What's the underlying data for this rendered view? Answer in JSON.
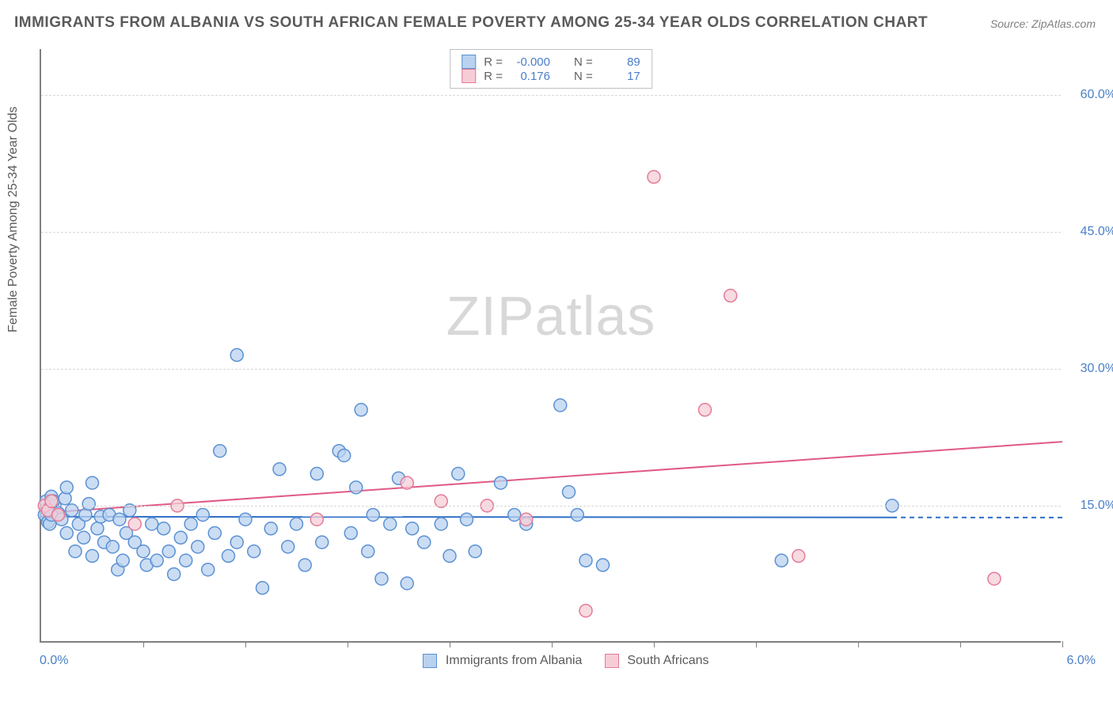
{
  "title": "IMMIGRANTS FROM ALBANIA VS SOUTH AFRICAN FEMALE POVERTY AMONG 25-34 YEAR OLDS CORRELATION CHART",
  "source": "Source: ZipAtlas.com",
  "watermark_a": "ZIP",
  "watermark_b": "atlas",
  "y_axis_label": "Female Poverty Among 25-34 Year Olds",
  "chart": {
    "type": "scatter-correlation",
    "background_color": "#ffffff",
    "grid_color": "#d8d8d8",
    "axis_color": "#808080",
    "x_range": [
      0.0,
      6.0
    ],
    "y_range": [
      0.0,
      65.0
    ],
    "x_origin_label": "0.0%",
    "x_max_label": "6.0%",
    "y_ticks": [
      {
        "value": 15.0,
        "label": "15.0%"
      },
      {
        "value": 30.0,
        "label": "30.0%"
      },
      {
        "value": 45.0,
        "label": "45.0%"
      },
      {
        "value": 60.0,
        "label": "60.0%"
      }
    ],
    "x_tick_positions": [
      0.6,
      1.2,
      1.8,
      2.4,
      3.0,
      3.6,
      4.2,
      4.8,
      5.4,
      6.0
    ],
    "series": [
      {
        "id": "albania",
        "label": "Immigrants from Albania",
        "marker_fill": "#b9d2ef",
        "marker_stroke": "#5b91d4",
        "marker_opacity": 0.75,
        "marker_radius": 8,
        "R": "-0.000",
        "N": "89",
        "trend": {
          "y_at_xmin": 13.8,
          "y_at_xmax": 13.7,
          "solid_until_x": 5.0,
          "color": "#2f6fc8",
          "width": 2
        },
        "points": [
          [
            0.02,
            14.0
          ],
          [
            0.03,
            15.5
          ],
          [
            0.04,
            13.2
          ],
          [
            0.05,
            14.8
          ],
          [
            0.06,
            16.0
          ],
          [
            0.05,
            13.0
          ],
          [
            0.08,
            15.0
          ],
          [
            0.1,
            14.2
          ],
          [
            0.07,
            15.5
          ],
          [
            0.06,
            14.0
          ],
          [
            0.12,
            13.5
          ],
          [
            0.15,
            12.0
          ],
          [
            0.14,
            15.8
          ],
          [
            0.18,
            14.5
          ],
          [
            0.2,
            10.0
          ],
          [
            0.22,
            13.0
          ],
          [
            0.25,
            11.5
          ],
          [
            0.26,
            14.0
          ],
          [
            0.28,
            15.2
          ],
          [
            0.3,
            9.5
          ],
          [
            0.33,
            12.5
          ],
          [
            0.35,
            13.8
          ],
          [
            0.37,
            11.0
          ],
          [
            0.4,
            14.0
          ],
          [
            0.42,
            10.5
          ],
          [
            0.45,
            8.0
          ],
          [
            0.46,
            13.5
          ],
          [
            0.48,
            9.0
          ],
          [
            0.5,
            12.0
          ],
          [
            0.52,
            14.5
          ],
          [
            0.55,
            11.0
          ],
          [
            0.6,
            10.0
          ],
          [
            0.62,
            8.5
          ],
          [
            0.65,
            13.0
          ],
          [
            0.68,
            9.0
          ],
          [
            0.72,
            12.5
          ],
          [
            0.75,
            10.0
          ],
          [
            0.78,
            7.5
          ],
          [
            0.82,
            11.5
          ],
          [
            0.85,
            9.0
          ],
          [
            0.88,
            13.0
          ],
          [
            0.92,
            10.5
          ],
          [
            0.95,
            14.0
          ],
          [
            0.98,
            8.0
          ],
          [
            1.02,
            12.0
          ],
          [
            1.05,
            21.0
          ],
          [
            1.1,
            9.5
          ],
          [
            1.15,
            11.0
          ],
          [
            1.2,
            13.5
          ],
          [
            1.25,
            10.0
          ],
          [
            1.3,
            6.0
          ],
          [
            1.35,
            12.5
          ],
          [
            1.4,
            19.0
          ],
          [
            1.45,
            10.5
          ],
          [
            1.5,
            13.0
          ],
          [
            1.55,
            8.5
          ],
          [
            1.62,
            18.5
          ],
          [
            1.65,
            11.0
          ],
          [
            1.75,
            21.0
          ],
          [
            1.78,
            20.5
          ],
          [
            1.82,
            12.0
          ],
          [
            1.85,
            17.0
          ],
          [
            1.88,
            25.5
          ],
          [
            1.92,
            10.0
          ],
          [
            1.95,
            14.0
          ],
          [
            2.0,
            7.0
          ],
          [
            2.05,
            13.0
          ],
          [
            2.1,
            18.0
          ],
          [
            2.15,
            6.5
          ],
          [
            2.18,
            12.5
          ],
          [
            2.25,
            11.0
          ],
          [
            2.35,
            13.0
          ],
          [
            2.4,
            9.5
          ],
          [
            2.45,
            18.5
          ],
          [
            2.5,
            13.5
          ],
          [
            2.55,
            10.0
          ],
          [
            2.7,
            17.5
          ],
          [
            2.78,
            14.0
          ],
          [
            2.85,
            13.0
          ],
          [
            3.05,
            26.0
          ],
          [
            3.1,
            16.5
          ],
          [
            3.15,
            14.0
          ],
          [
            3.2,
            9.0
          ],
          [
            3.3,
            8.5
          ],
          [
            1.15,
            31.5
          ],
          [
            0.3,
            17.5
          ],
          [
            4.35,
            9.0
          ],
          [
            5.0,
            15.0
          ],
          [
            0.15,
            17.0
          ]
        ]
      },
      {
        "id": "south_african",
        "label": "South Africans",
        "marker_fill": "#f6cdd7",
        "marker_stroke": "#e47a98",
        "marker_opacity": 0.75,
        "marker_radius": 8,
        "R": "0.176",
        "N": "17",
        "trend": {
          "y_at_xmin": 14.2,
          "y_at_xmax": 22.0,
          "solid_until_x": 6.0,
          "color": "#e05a84",
          "width": 2
        },
        "points": [
          [
            0.02,
            15.0
          ],
          [
            0.04,
            14.5
          ],
          [
            0.06,
            15.5
          ],
          [
            0.1,
            14.0
          ],
          [
            0.55,
            13.0
          ],
          [
            0.8,
            15.0
          ],
          [
            1.62,
            13.5
          ],
          [
            2.15,
            17.5
          ],
          [
            2.35,
            15.5
          ],
          [
            2.62,
            15.0
          ],
          [
            2.85,
            13.5
          ],
          [
            3.2,
            3.5
          ],
          [
            3.6,
            51.0
          ],
          [
            3.9,
            25.5
          ],
          [
            4.05,
            38.0
          ],
          [
            4.45,
            9.5
          ],
          [
            5.6,
            7.0
          ]
        ]
      }
    ],
    "legend_top": {
      "r_label": "R =",
      "n_label": "N ="
    }
  }
}
